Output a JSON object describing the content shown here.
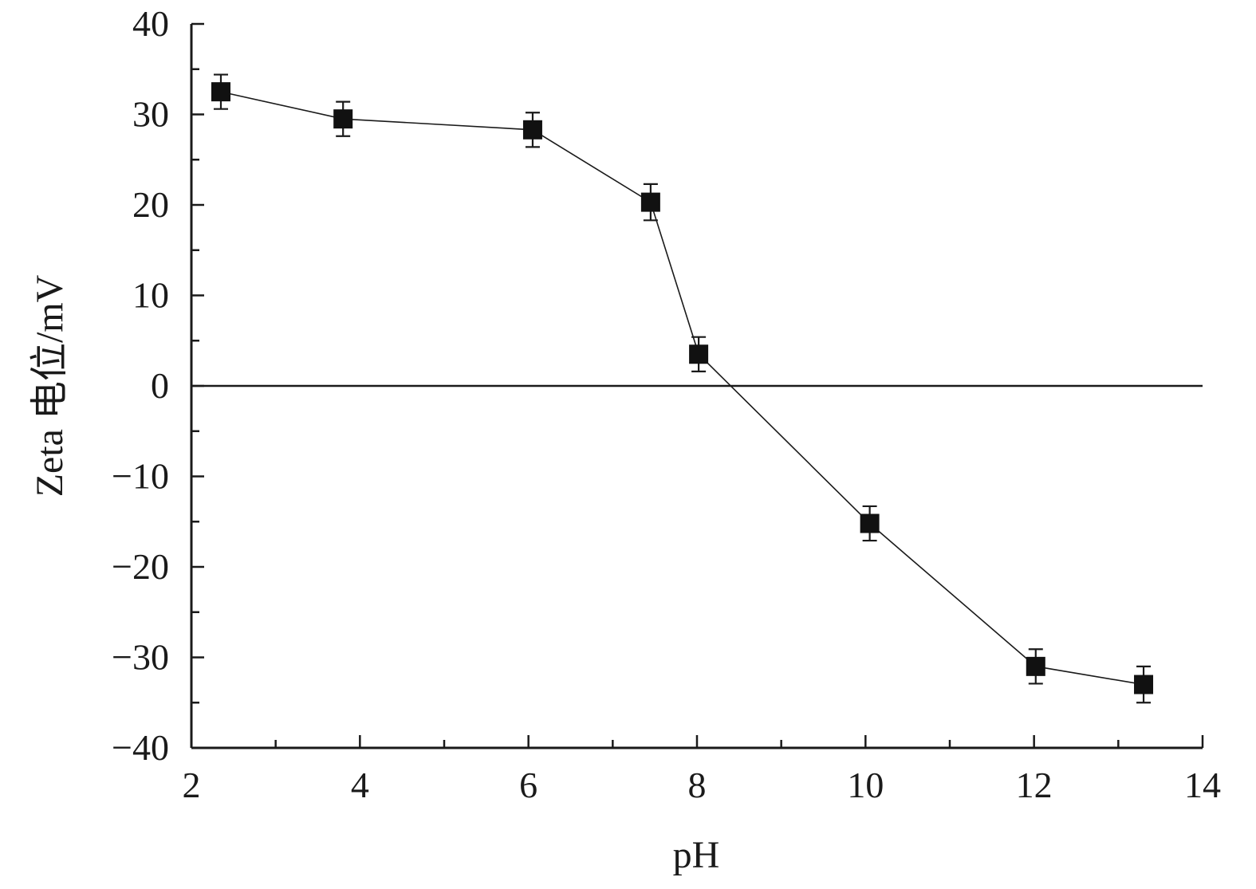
{
  "chart_data": {
    "type": "scatter",
    "title": "",
    "xlabel": "pH",
    "ylabel": "Zeta 电位/mV",
    "xlim": [
      2,
      14
    ],
    "ylim": [
      -40,
      40
    ],
    "x_ticks": [
      2,
      4,
      6,
      8,
      10,
      12,
      14
    ],
    "x_tick_labels": [
      "2",
      "4",
      "6",
      "8",
      "10",
      "12",
      "14"
    ],
    "x_minor_step": 1,
    "y_ticks": [
      40,
      30,
      20,
      10,
      0,
      -10,
      -20,
      -30,
      -40
    ],
    "y_tick_labels": [
      "40",
      "30",
      "20",
      "10",
      "0",
      "−10",
      "−20",
      "−30",
      "−40"
    ],
    "y_minor_step": 5,
    "zero_line": true,
    "grid": false,
    "series": [
      {
        "marker": "square",
        "line": true,
        "color": "#111111",
        "points": [
          {
            "x": 2.35,
            "y": 32.5,
            "err": 1.9
          },
          {
            "x": 3.8,
            "y": 29.5,
            "err": 1.9
          },
          {
            "x": 6.05,
            "y": 28.3,
            "err": 1.9
          },
          {
            "x": 7.45,
            "y": 20.3,
            "err": 2.0
          },
          {
            "x": 8.02,
            "y": 3.5,
            "err": 1.9
          },
          {
            "x": 10.05,
            "y": -15.2,
            "err": 1.9
          },
          {
            "x": 12.02,
            "y": -31.0,
            "err": 1.9
          },
          {
            "x": 13.3,
            "y": -33.0,
            "err": 2.0
          }
        ]
      }
    ]
  }
}
